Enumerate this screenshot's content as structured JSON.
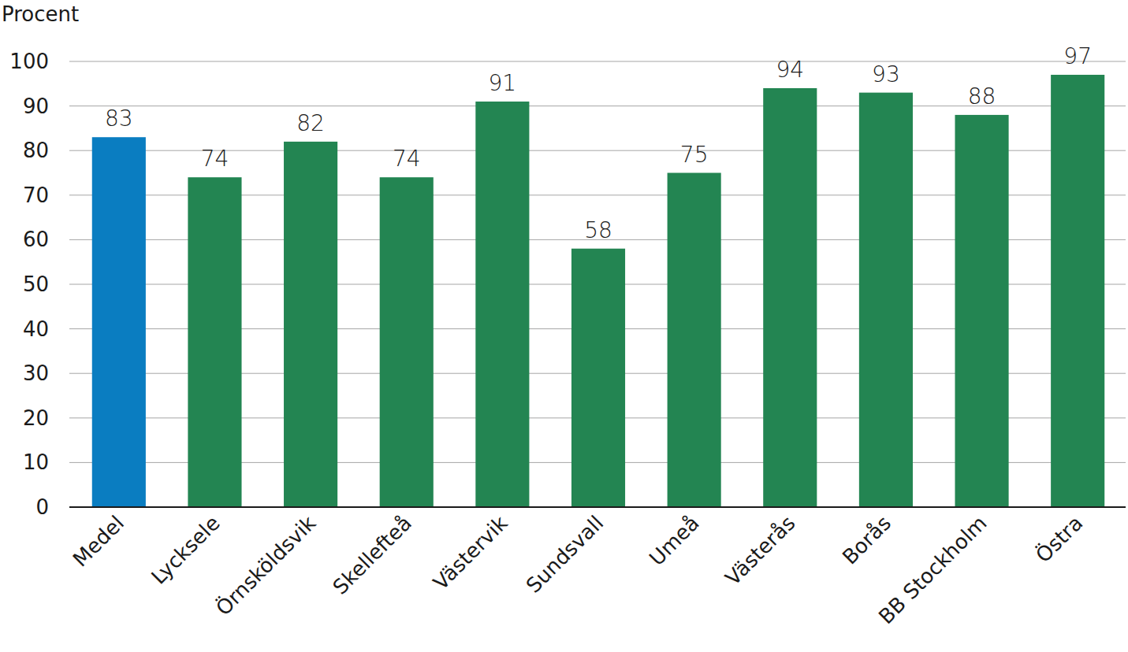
{
  "chart_data": {
    "type": "bar",
    "y_label": "Procent",
    "categories": [
      "Medel",
      "Lycksele",
      "Örnsköldsvik",
      "Skellefteå",
      "Västervik",
      "Sundsvall",
      "Umeå",
      "Västerås",
      "Borås",
      "BB Stockholm",
      "Östra"
    ],
    "values": [
      83,
      74,
      82,
      74,
      91,
      58,
      75,
      94,
      93,
      88,
      97
    ],
    "colors": [
      "#0a7dc1",
      "#238552",
      "#238552",
      "#238552",
      "#238552",
      "#238552",
      "#238552",
      "#238552",
      "#238552",
      "#238552",
      "#238552"
    ],
    "ylim": [
      0,
      100
    ],
    "yticks": [
      0,
      10,
      20,
      30,
      40,
      50,
      60,
      70,
      80,
      90,
      100
    ],
    "grid": true,
    "data_labels": true
  }
}
